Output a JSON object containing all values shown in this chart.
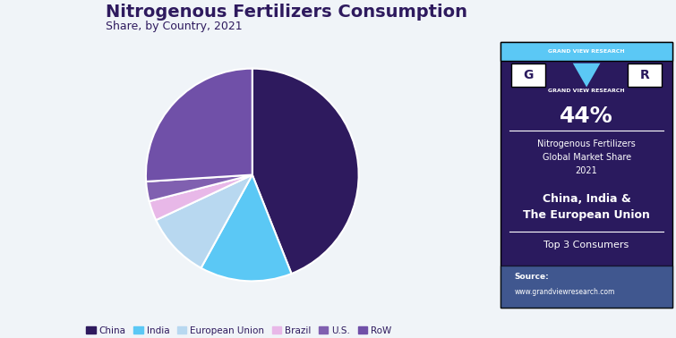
{
  "title": "Nitrogenous Fertilizers Consumption",
  "subtitle": "Share, by Country, 2021",
  "title_color": "#2e1a5e",
  "bg_color": "#f0f4f8",
  "labels": [
    "China",
    "India",
    "European Union",
    "Brazil",
    "U.S.",
    "RoW"
  ],
  "values": [
    44,
    14,
    10,
    3,
    3,
    26
  ],
  "colors": [
    "#2e1a5e",
    "#5bc8f5",
    "#b8d8f0",
    "#e8b8e8",
    "#8060b0",
    "#7050a8"
  ],
  "legend_colors": [
    "#2e1a5e",
    "#5bc8f5",
    "#b8d8f0",
    "#e8b8e8",
    "#8060b0",
    "#7050a8"
  ],
  "sidebar_bg": "#2a1a5e",
  "sidebar_bottom_bg": "#5080b0",
  "sidebar_percent": "44%",
  "sidebar_line1": "Nitrogenous Fertilizers",
  "sidebar_line2": "Global Market Share",
  "sidebar_line3": "2021",
  "sidebar_bold1": "China, India &",
  "sidebar_bold2": "The European Union",
  "sidebar_sub": "Top 3 Consumers",
  "source_label": "Source:",
  "source_url": "www.grandviewresearch.com",
  "top_bar_color": "#5bc8f5",
  "startangle": 90
}
